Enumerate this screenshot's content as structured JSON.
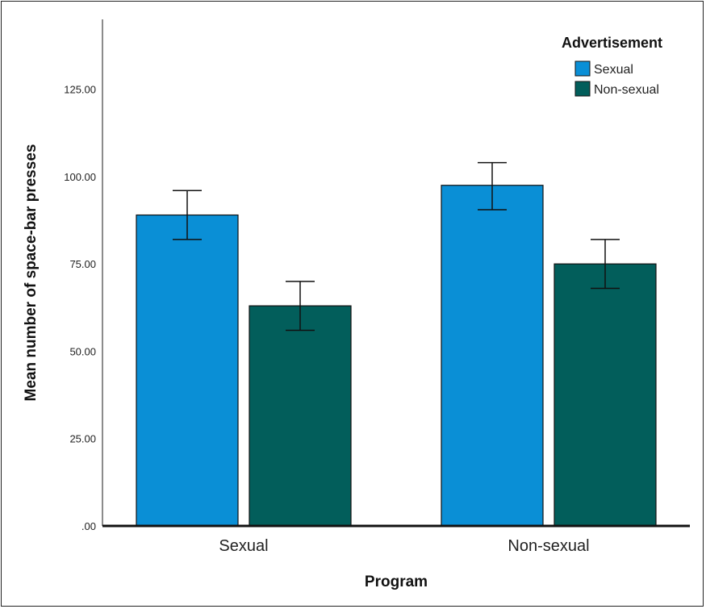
{
  "chart_data": {
    "type": "bar",
    "categories": [
      "Sexual",
      "Non-sexual"
    ],
    "series": [
      {
        "name": "Sexual",
        "color": "#0a8fd6",
        "values": [
          89.0,
          97.5
        ],
        "error_low": [
          82.0,
          90.5
        ],
        "error_high": [
          96.0,
          104.0
        ]
      },
      {
        "name": "Non-sexual",
        "color": "#025e5b",
        "values": [
          63.0,
          75.0
        ],
        "error_low": [
          56.0,
          68.0
        ],
        "error_high": [
          70.0,
          82.0
        ]
      }
    ],
    "xlabel": "Program",
    "ylabel": "Mean number of space-bar presses",
    "ylim": [
      0,
      145
    ],
    "yticks": [
      0,
      25,
      50,
      75,
      100,
      125
    ],
    "ytick_labels": [
      ".00",
      "25.00",
      "50.00",
      "75.00",
      "100.00",
      "125.00"
    ],
    "legend": {
      "title": "Advertisement",
      "placement": "top-right"
    },
    "grid": false
  }
}
